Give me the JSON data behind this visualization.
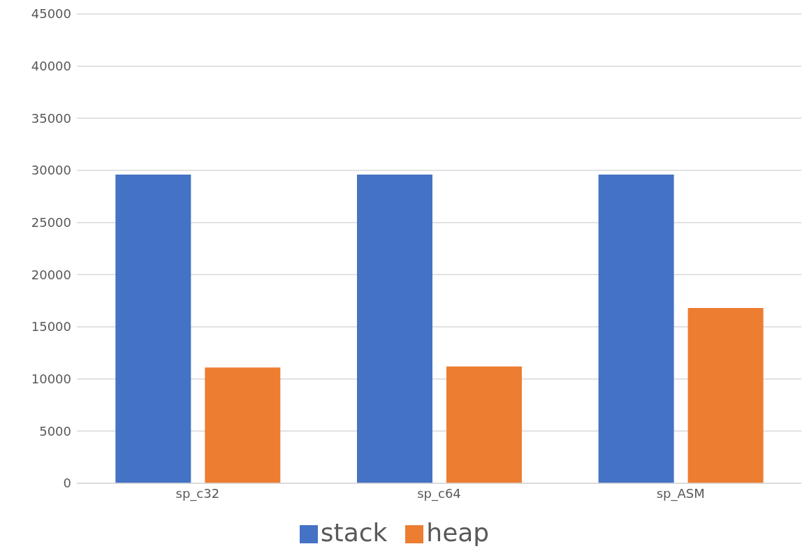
{
  "chart_data": {
    "type": "bar",
    "categories": [
      "sp_c32",
      "sp_c64",
      "sp_ASM"
    ],
    "series": [
      {
        "name": "stack",
        "color": "#4472c4",
        "values": [
          29600,
          29600,
          29600
        ]
      },
      {
        "name": "heap",
        "color": "#ed7d31",
        "values": [
          11100,
          11200,
          16800
        ]
      }
    ],
    "ylim": [
      0,
      45000
    ],
    "yticks": [
      0,
      5000,
      10000,
      15000,
      20000,
      25000,
      30000,
      35000,
      40000,
      45000
    ],
    "grid": "y",
    "legend": "bottom"
  }
}
